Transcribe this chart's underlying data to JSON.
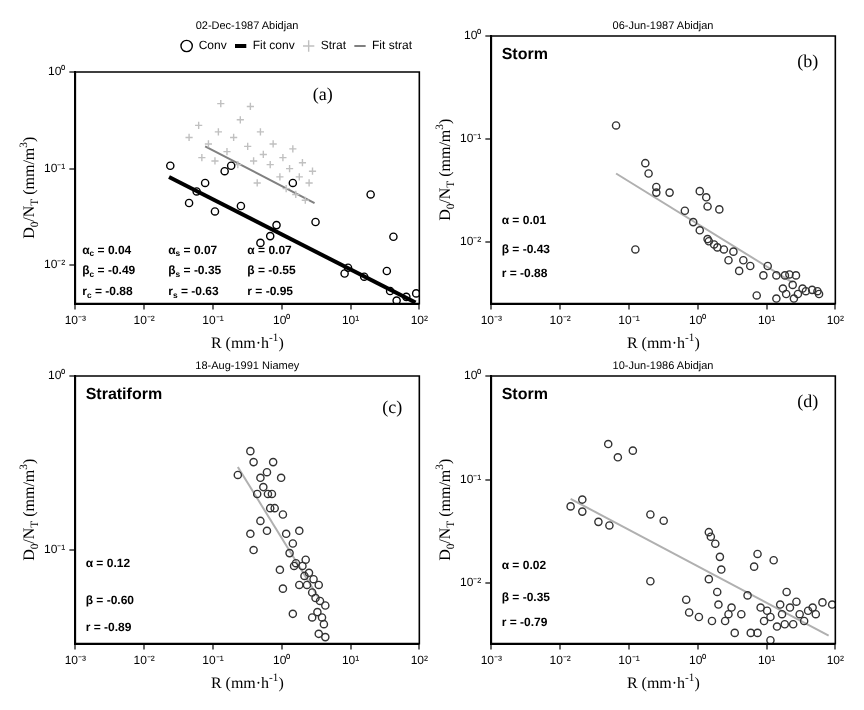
{
  "chart_data": [
    {
      "type": "scatter",
      "title": "02-Dec-1987 Abidjan",
      "xlabel": "R (mm·h$^{-1}$)",
      "ylabel": "D$_{0}$/N$_{T}$ (mm/m$^{3}$)",
      "log": "xy",
      "legend": "top right",
      "xlim": [
        0.001,
        100
      ],
      "xticks": [
        {
          "value": 0.001,
          "label": "10⁻³"
        },
        {
          "value": 0.01,
          "label": "10⁻²"
        },
        {
          "value": 0.1,
          "label": "10⁻¹"
        },
        {
          "value": 1,
          "label": "10⁰"
        },
        {
          "value": 10,
          "label": "10¹"
        },
        {
          "value": 100,
          "label": "10²"
        }
      ],
      "ylim": [
        0.004,
        1
      ],
      "yticks": [
        {
          "value": 0.01,
          "label": "10⁻²"
        },
        {
          "value": 0.1,
          "label": "10⁻¹"
        },
        {
          "value": 1,
          "label": "10⁰"
        }
      ],
      "annotations": [
        "(a)",
        "α$_{c}$ = 0.04",
        "α$_{s}$ = 0.07",
        "α = 0.07",
        "β$_{c}$ = -0.49",
        "β$_{s}$ = -0.35",
        "β = -0.55",
        "r$_{c}$ = -0.88",
        "r$_{s}$ = -0.63",
        "r = -0.95"
      ],
      "series": [
        {
          "name": "Conv",
          "color": "#000000",
          "marker": "circle",
          "x": [
            0.024,
            0.045,
            0.058,
            0.077,
            0.107,
            0.148,
            0.184,
            0.255,
            0.49,
            0.68,
            0.84,
            1.45,
            3.1,
            8.2,
            9.2,
            15.8,
            19.6,
            33.7,
            37.6,
            42,
            46.8,
            64.7,
            90
          ],
          "values": [
            0.107,
            0.044,
            0.058,
            0.071,
            0.036,
            0.094,
            0.107,
            0.041,
            0.017,
            0.02,
            0.026,
            0.071,
            0.028,
            0.0082,
            0.0094,
            0.0076,
            0.054,
            0.0087,
            0.0054,
            0.0197,
            0.0043,
            0.0047,
            0.0051
          ]
        },
        {
          "name": "Fit conv",
          "type": "line",
          "color": "#000000",
          "x": [
            0.023,
            88
          ],
          "values": [
            0.082,
            0.0041
          ]
        },
        {
          "name": "Strat",
          "color": "#c0c0c0",
          "marker": "cross",
          "x": [
            0.045,
            0.062,
            0.086,
            0.12,
            0.13,
            0.16,
            0.2,
            0.25,
            0.32,
            0.35,
            0.39,
            0.49,
            0.54,
            0.68,
            0.75,
            0.94,
            1.04,
            1.16,
            1.3,
            1.45,
            1.6,
            1.8,
            2.0,
            2.2,
            2.5,
            2.8,
            0.44,
            0.23,
            0.107,
            0.069
          ],
          "values": [
            0.21,
            0.28,
            0.18,
            0.24,
            0.47,
            0.15,
            0.21,
            0.32,
            0.17,
            0.44,
            0.12,
            0.24,
            0.14,
            0.11,
            0.18,
            0.082,
            0.13,
            0.062,
            0.1,
            0.16,
            0.054,
            0.082,
            0.115,
            0.047,
            0.071,
            0.094,
            0.071,
            0.11,
            0.12,
            0.13
          ]
        },
        {
          "name": "Fit strat",
          "type": "line",
          "color": "#808080",
          "x": [
            0.077,
            3.0
          ],
          "values": [
            0.17,
            0.044
          ]
        }
      ]
    },
    {
      "type": "scatter",
      "title": "06-Jun-1987 Abidjan",
      "xlabel": "R (mm·h$^{-1}$)",
      "ylabel": "D$_{0}$/N$_{T}$ (mm/m$^{3}$)",
      "log": "xy",
      "marker": "circle",
      "xlim": [
        0.001,
        100
      ],
      "xticks": [
        {
          "value": 0.001,
          "label": "10⁻³"
        },
        {
          "value": 0.01,
          "label": "10⁻²"
        },
        {
          "value": 0.1,
          "label": "10⁻¹"
        },
        {
          "value": 1,
          "label": "10⁰"
        },
        {
          "value": 10,
          "label": "10¹"
        },
        {
          "value": 100,
          "label": "10²"
        }
      ],
      "ylim": [
        0.0025,
        1
      ],
      "yticks": [
        {
          "value": 0.01,
          "label": "10⁻²"
        },
        {
          "value": 0.1,
          "label": "10⁻¹"
        },
        {
          "value": 1,
          "label": "10⁰"
        }
      ],
      "annotations": [
        "Storm",
        "(b)",
        "α = 0.01",
        "β = -0.43",
        "r = -0.88"
      ],
      "series": [
        {
          "color": "#333333",
          "x": [
            0.065,
            0.124,
            0.173,
            0.193,
            0.25,
            0.25,
            0.39,
            0.65,
            0.86,
            1.07,
            1.07,
            1.33,
            1.39,
            1.39,
            1.45,
            1.73,
            2.06,
            1.93,
            2.4,
            2.8,
            3.3,
            4.0,
            4.6,
            5.8,
            9.0,
            10.4,
            13.9,
            18.5,
            21.5,
            26.8,
            7.2,
            13.9,
            17.3,
            19.3,
            24,
            28.6,
            33.4,
            37.3,
            46,
            55,
            58,
            25
          ],
          "values": [
            0.135,
            0.0084,
            0.058,
            0.046,
            0.034,
            0.03,
            0.03,
            0.02,
            0.0155,
            0.031,
            0.0129,
            0.027,
            0.022,
            0.0106,
            0.0101,
            0.0094,
            0.0206,
            0.0088,
            0.0084,
            0.0066,
            0.008,
            0.0052,
            0.0066,
            0.0058,
            0.0047,
            0.0058,
            0.0047,
            0.0047,
            0.0048,
            0.0047,
            0.003,
            0.0028,
            0.0035,
            0.0031,
            0.0038,
            0.0031,
            0.0035,
            0.0033,
            0.0034,
            0.0033,
            0.0031,
            0.0028
          ]
        },
        {
          "type": "line",
          "marker": "none",
          "color": "#b0b0b0",
          "x": [
            0.065,
            24
          ],
          "values": [
            0.046,
            0.004
          ]
        }
      ]
    },
    {
      "type": "scatter",
      "title": "18-Aug-1991 Niamey",
      "xlabel": "R (mm·h$^{-1}$)",
      "ylabel": "D$_{0}$/N$_{T}$ (mm/m$^{3}$)",
      "log": "xy",
      "marker": "circle",
      "xlim": [
        0.001,
        100
      ],
      "xticks": [
        {
          "value": 0.001,
          "label": "10⁻³"
        },
        {
          "value": 0.01,
          "label": "10⁻²"
        },
        {
          "value": 0.1,
          "label": "10⁻¹"
        },
        {
          "value": 1,
          "label": "10⁰"
        },
        {
          "value": 10,
          "label": "10¹"
        },
        {
          "value": 100,
          "label": "10²"
        }
      ],
      "ylim": [
        0.029,
        1
      ],
      "yticks": [
        {
          "value": 0.1,
          "label": "10⁻¹"
        },
        {
          "value": 1,
          "label": "10⁰"
        }
      ],
      "annotations": [
        "Stratiform",
        "(c)",
        "α = 0.12",
        "β = -0.60",
        "r = -0.89"
      ],
      "series": [
        {
          "color": "#333333",
          "x": [
            0.23,
            0.35,
            0.39,
            0.44,
            0.49,
            0.54,
            0.61,
            0.63,
            0.72,
            0.75,
            0.79,
            0.35,
            0.39,
            0.49,
            0.61,
            0.68,
            0.98,
            1.04,
            1.16,
            1.3,
            1.45,
            1.51,
            1.61,
            1.8,
            2.0,
            2.14,
            2.23,
            2.33,
            2.49,
            2.77,
            2.9,
            3.1,
            3.3,
            3.45,
            3.6,
            3.85,
            4.1,
            4.3,
            1.04,
            1.45,
            2.77,
            3.45,
            4.3,
            1.8,
            0.94
          ],
          "values": [
            0.27,
            0.37,
            0.32,
            0.21,
            0.26,
            0.23,
            0.28,
            0.21,
            0.21,
            0.32,
            0.174,
            0.124,
            0.1,
            0.147,
            0.129,
            0.174,
            0.26,
            0.16,
            0.124,
            0.096,
            0.109,
            0.081,
            0.084,
            0.129,
            0.081,
            0.071,
            0.088,
            0.063,
            0.074,
            0.057,
            0.068,
            0.053,
            0.044,
            0.063,
            0.051,
            0.041,
            0.0375,
            0.048,
            0.06,
            0.043,
            0.041,
            0.033,
            0.0316,
            0.063,
            0.077
          ]
        },
        {
          "type": "line",
          "marker": "none",
          "color": "#b0b0b0",
          "x": [
            0.23,
            3.45
          ],
          "values": [
            0.3,
            0.053
          ]
        }
      ]
    },
    {
      "type": "scatter",
      "title": "10-Jun-1986 Abidjan",
      "xlabel": "R (mm·h$^{-1}$)",
      "ylabel": "D$_{0}$/N$_{T}$ (mm/m$^{3}$)",
      "log": "xy",
      "marker": "circle",
      "xlim": [
        0.001,
        100
      ],
      "xticks": [
        {
          "value": 0.001,
          "label": "10⁻³"
        },
        {
          "value": 0.01,
          "label": "10⁻²"
        },
        {
          "value": 0.1,
          "label": "10⁻¹"
        },
        {
          "value": 1,
          "label": "10⁰"
        },
        {
          "value": 10,
          "label": "10¹"
        },
        {
          "value": 100,
          "label": "10²"
        }
      ],
      "ylim": [
        0.0026,
        1
      ],
      "yticks": [
        {
          "value": 0.01,
          "label": "10⁻²"
        },
        {
          "value": 0.1,
          "label": "10⁻¹"
        },
        {
          "value": 1,
          "label": "10⁰"
        }
      ],
      "annotations": [
        "Storm",
        "(d)",
        "α = 0.02",
        "β = -0.35",
        "r = -0.79"
      ],
      "series": [
        {
          "color": "#333333",
          "x": [
            0.0142,
            0.021,
            0.021,
            0.036,
            0.052,
            0.05,
            0.069,
            0.114,
            0.205,
            0.32,
            0.205,
            0.68,
            0.75,
            1.04,
            1.45,
            1.55,
            1.8,
            2.1,
            2.2,
            1.45,
            1.92,
            2.0,
            2.5,
            2.8,
            3.1,
            4.3,
            5.3,
            5.9,
            6.6,
            7.4,
            8.2,
            9.2,
            10.2,
            11.4,
            12.7,
            14.2,
            15.8,
            16.8,
            18.4,
            19.6,
            21.9,
            24.4,
            27.2,
            30.3,
            35.2,
            40.2,
            46.8,
            52,
            65,
            90,
            1.61,
            3.45,
            7.4,
            11.4
          ],
          "values": [
            0.055,
            0.064,
            0.049,
            0.039,
            0.036,
            0.22,
            0.164,
            0.19,
            0.046,
            0.04,
            0.0104,
            0.0069,
            0.0052,
            0.0047,
            0.031,
            0.028,
            0.024,
            0.0179,
            0.0135,
            0.0109,
            0.0082,
            0.0062,
            0.0043,
            0.005,
            0.0058,
            0.005,
            0.0076,
            0.0033,
            0.0144,
            0.0191,
            0.0058,
            0.0043,
            0.0054,
            0.0047,
            0.0166,
            0.0038,
            0.0062,
            0.005,
            0.004,
            0.0082,
            0.0058,
            0.004,
            0.0066,
            0.005,
            0.0043,
            0.0054,
            0.0058,
            0.005,
            0.0065,
            0.0062,
            0.0043,
            0.0033,
            0.0033,
            0.0028
          ]
        },
        {
          "type": "line",
          "marker": "none",
          "color": "#b0b0b0",
          "x": [
            0.0142,
            80
          ],
          "values": [
            0.065,
            0.0031
          ]
        }
      ]
    }
  ]
}
